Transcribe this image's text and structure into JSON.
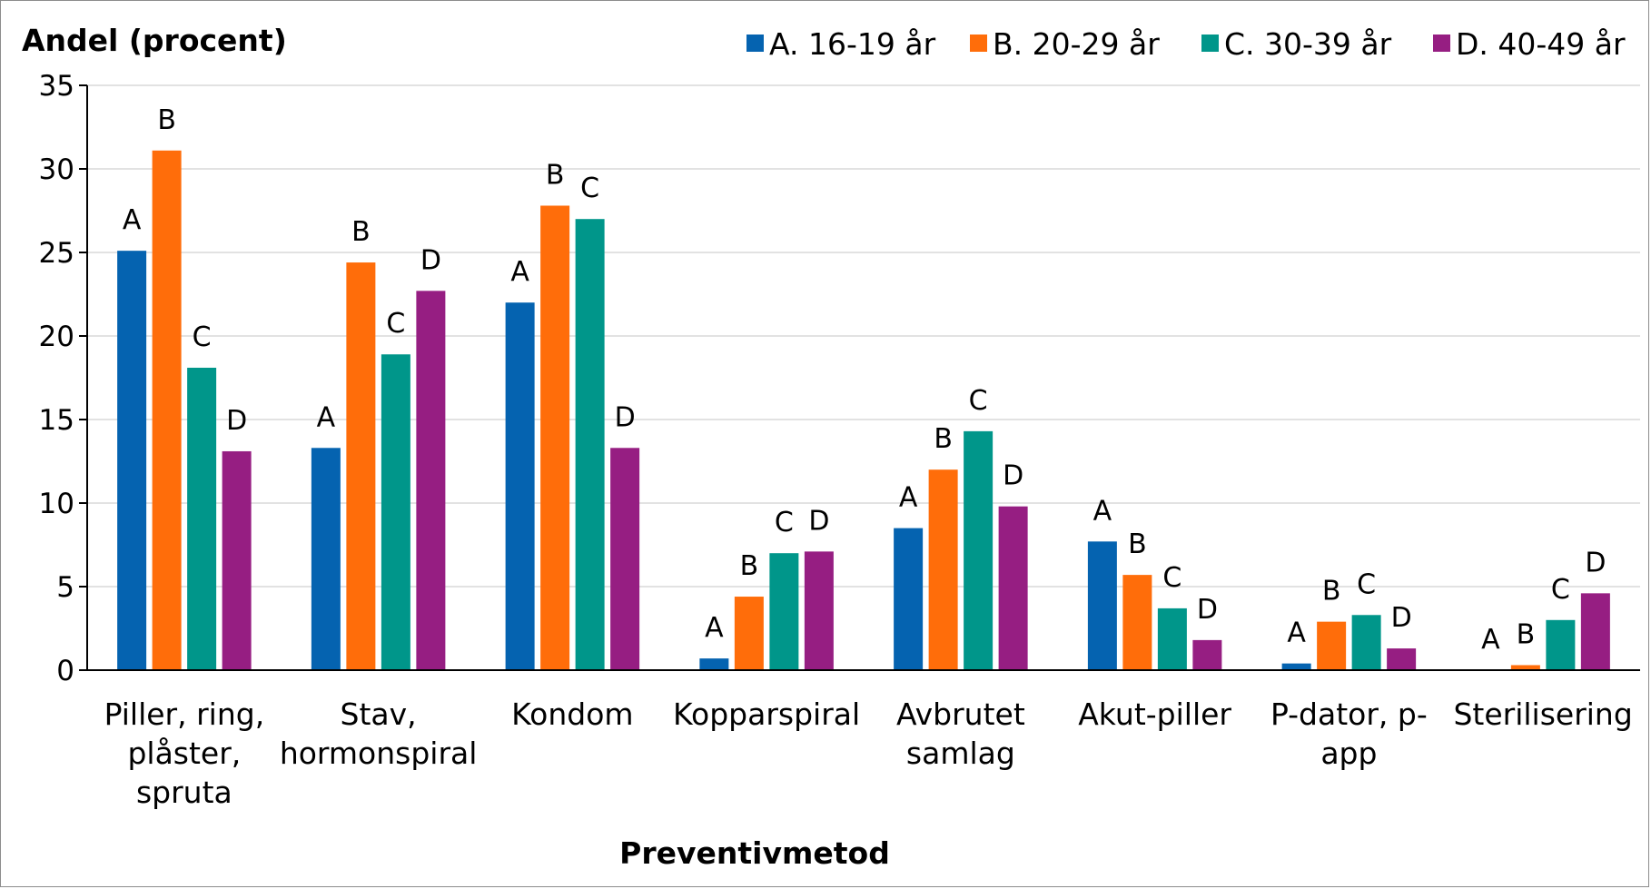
{
  "chart_data": {
    "type": "bar",
    "title": "",
    "ylabel": "Andel (procent)",
    "xlabel": "Preventivmetod",
    "ylim": [
      0,
      35
    ],
    "yticks": [
      0,
      5,
      10,
      15,
      20,
      25,
      30,
      35
    ],
    "grid": true,
    "legend_position": "top-right",
    "categories": [
      [
        "Piller, ring,",
        "plåster,",
        "spruta"
      ],
      [
        "Stav,",
        "hormonspiral"
      ],
      [
        "Kondom"
      ],
      [
        "Kopparspiral"
      ],
      [
        "Avbrutet",
        "samlag"
      ],
      [
        "Akut-piller"
      ],
      [
        "P-dator, p-",
        "app"
      ],
      [
        "Sterilisering"
      ]
    ],
    "series": [
      {
        "name": "A. 16-19 år",
        "letter": "A",
        "color": "#0563b0",
        "values": [
          25.1,
          13.3,
          22.0,
          0.7,
          8.5,
          7.7,
          0.4,
          0.0
        ]
      },
      {
        "name": "B. 20-29 år",
        "letter": "B",
        "color": "#ff6d0a",
        "values": [
          31.1,
          24.4,
          27.8,
          4.4,
          12.0,
          5.7,
          2.9,
          0.3
        ]
      },
      {
        "name": "C. 30-39 år",
        "letter": "C",
        "color": "#00968a",
        "values": [
          18.1,
          18.9,
          27.0,
          7.0,
          14.3,
          3.7,
          3.3,
          3.0
        ]
      },
      {
        "name": "D. 40-49 år",
        "letter": "D",
        "color": "#961e82",
        "values": [
          13.1,
          22.7,
          13.3,
          7.1,
          9.8,
          1.8,
          1.3,
          4.6
        ]
      }
    ]
  }
}
